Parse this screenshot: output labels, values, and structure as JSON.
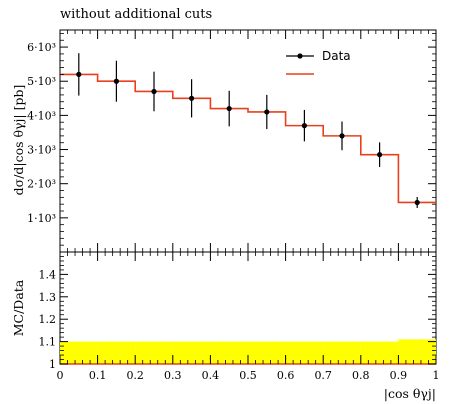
{
  "chart_data": [
    {
      "type": "line",
      "title": "without additional cuts",
      "ylabel": "dσ/d|cos θγj| [pb]",
      "xlim": [
        0,
        1
      ],
      "ylim": [
        0,
        6500
      ],
      "yticks": [
        1000,
        2000,
        3000,
        4000,
        5000,
        6000
      ],
      "ytick_labels": [
        "1·10³",
        "2·10³",
        "3·10³",
        "4·10³",
        "5·10³",
        "6·10³"
      ],
      "bin_edges": [
        0,
        0.1,
        0.2,
        0.3,
        0.4,
        0.5,
        0.6,
        0.7,
        0.8,
        0.9,
        1.0
      ],
      "legend": [
        "Data",
        ""
      ],
      "legend_position": "top-right",
      "series": [
        {
          "name": "Data",
          "style": "points-with-errorbars",
          "color": "#000000",
          "x": [
            0.05,
            0.15,
            0.25,
            0.35,
            0.45,
            0.55,
            0.65,
            0.75,
            0.85,
            0.95
          ],
          "values": [
            5200,
            5000,
            4700,
            4500,
            4200,
            4100,
            3700,
            3400,
            2850,
            1450
          ],
          "errors": [
            620,
            600,
            580,
            560,
            520,
            500,
            460,
            420,
            360,
            160
          ]
        },
        {
          "style": "histogram",
          "color": "#e8401c",
          "values": [
            5200,
            5000,
            4700,
            4500,
            4200,
            4100,
            3700,
            3400,
            2850,
            1450
          ]
        }
      ]
    },
    {
      "type": "area",
      "ylabel": "MC/Data",
      "xlabel": "|cos θγj|",
      "xlim": [
        0,
        1
      ],
      "ylim": [
        1,
        1.5
      ],
      "yticks": [
        1,
        1.1,
        1.2,
        1.3,
        1.4
      ],
      "ytick_labels": [
        "1",
        "1.1",
        "1.2",
        "1.3",
        "1.4"
      ],
      "xticks": [
        0,
        0.1,
        0.2,
        0.3,
        0.4,
        0.5,
        0.6,
        0.7,
        0.8,
        0.9,
        1
      ],
      "xtick_labels": [
        "0",
        "0.1",
        "0.2",
        "0.3",
        "0.4",
        "0.5",
        "0.6",
        "0.7",
        "0.8",
        "0.9",
        "1"
      ],
      "band": {
        "color": "#ffff00",
        "upper": [
          1.1,
          1.1,
          1.1,
          1.1,
          1.1,
          1.1,
          1.1,
          1.1,
          1.1,
          1.11
        ],
        "lower": [
          1.0,
          1.0,
          1.0,
          1.0,
          1.0,
          1.0,
          1.0,
          1.0,
          1.0,
          1.0
        ]
      },
      "reference_line": {
        "y": 1.0,
        "color": "#e8401c"
      }
    }
  ]
}
